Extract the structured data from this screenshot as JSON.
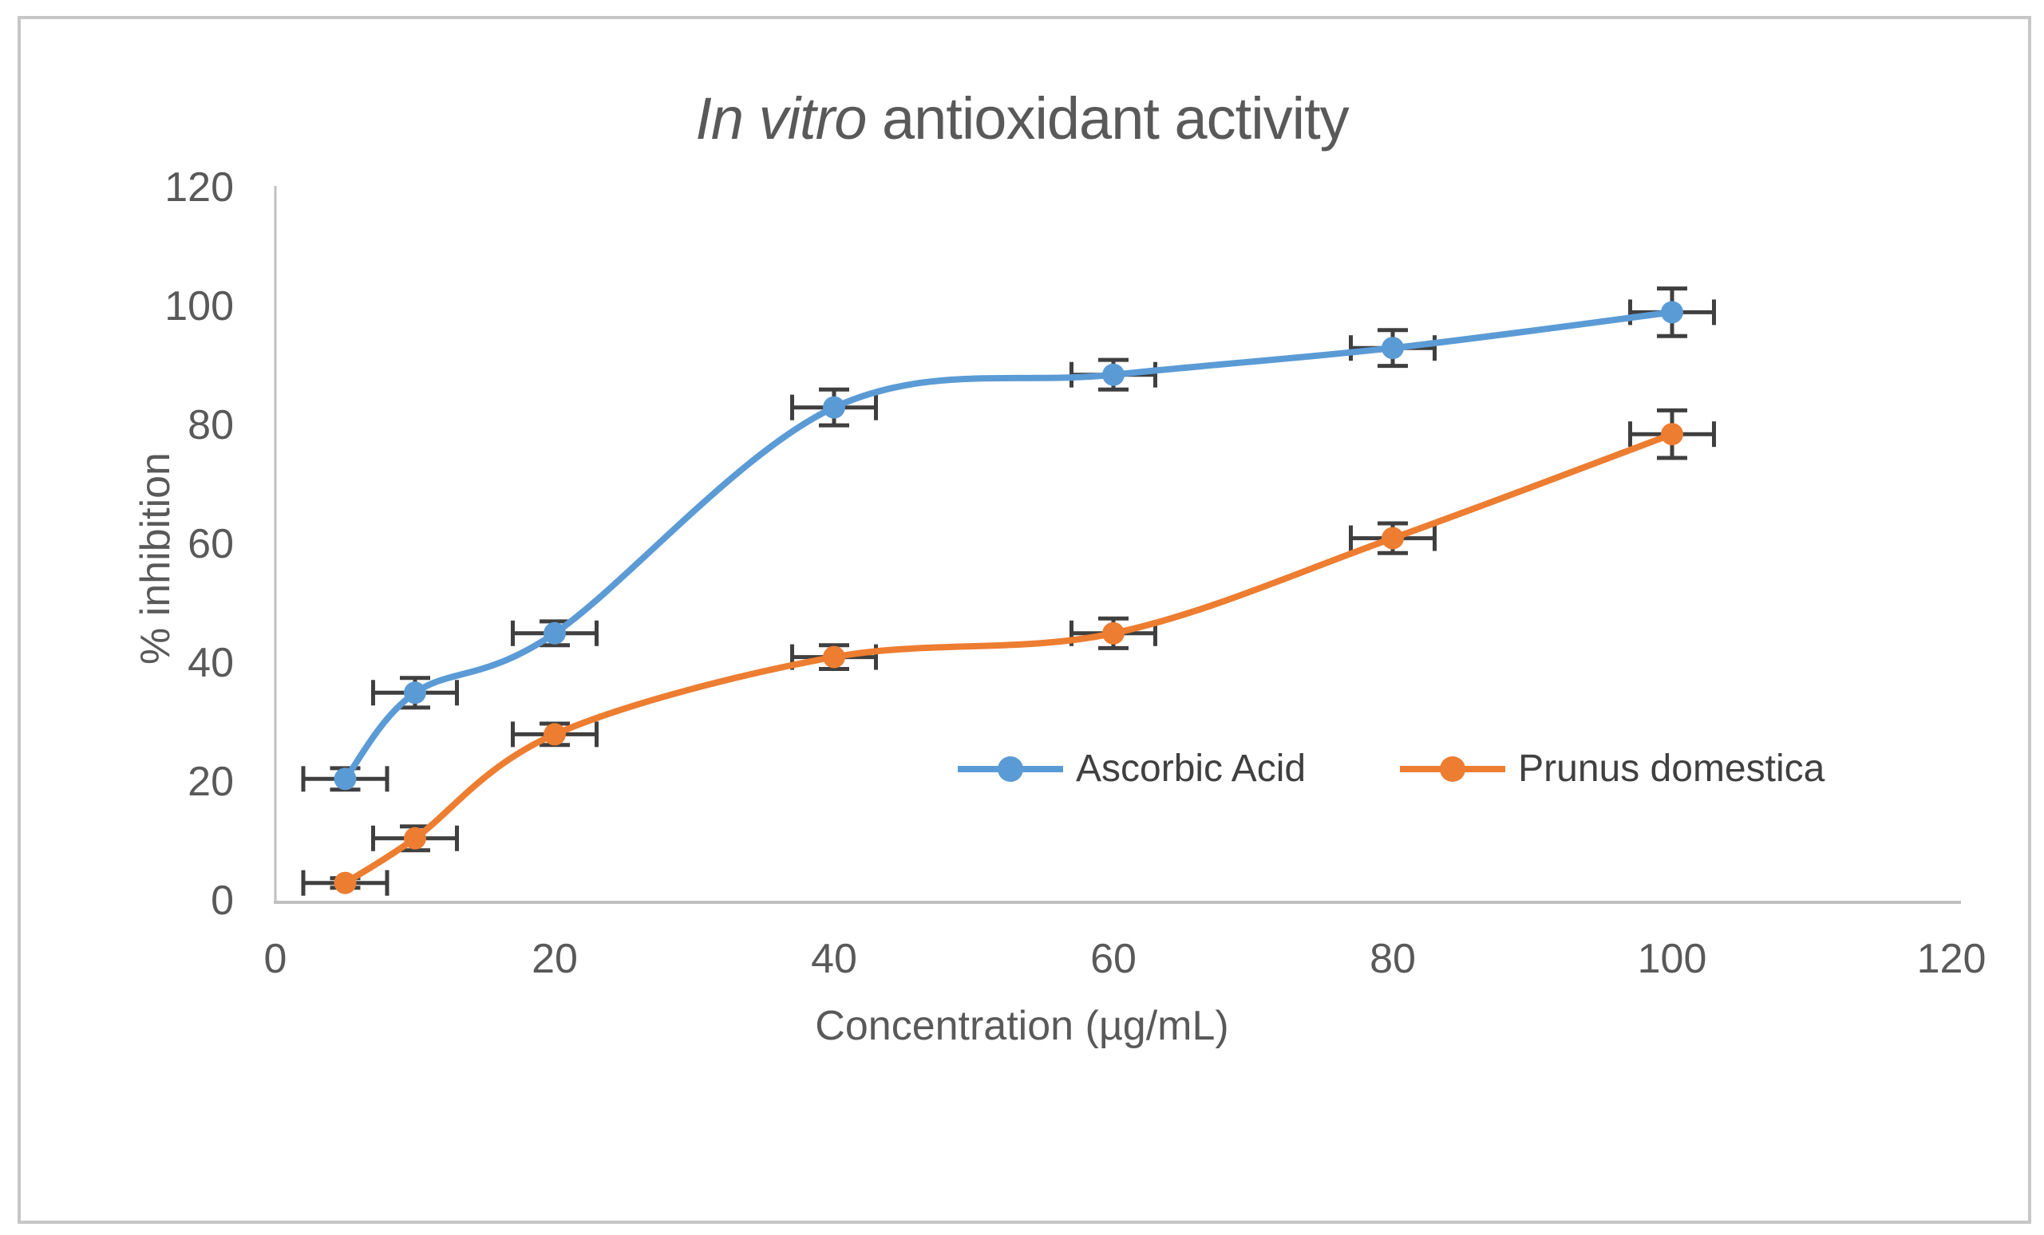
{
  "title": {
    "italic": "In vitro",
    "rest": " antioxidant activity"
  },
  "chart_data": {
    "type": "line",
    "title": "In vitro antioxidant activity",
    "title_italic_part": "In vitro",
    "xlabel": "Concentration (µg/mL)",
    "ylabel": "% inhibition",
    "xlim": [
      0,
      120
    ],
    "ylim": [
      0,
      120
    ],
    "x_ticks": [
      0,
      20,
      40,
      60,
      80,
      100,
      120
    ],
    "y_ticks": [
      0,
      20,
      40,
      60,
      80,
      100,
      120
    ],
    "grid": false,
    "smooth_lines": true,
    "legend_position": "inside-bottom",
    "x": [
      5,
      10,
      20,
      40,
      60,
      80,
      100
    ],
    "series": [
      {
        "name": "Ascorbic Acid",
        "color": "#5B9BD5",
        "values": [
          20.5,
          35,
          45,
          83,
          88.5,
          93,
          99
        ],
        "yerr": [
          1.8,
          2.5,
          2,
          3,
          2.5,
          3,
          4
        ]
      },
      {
        "name": "Prunus domestica",
        "color": "#ED7D31",
        "values": [
          3,
          10.5,
          28,
          41,
          45,
          61,
          78.5
        ],
        "yerr": [
          0.8,
          2,
          1.8,
          2,
          2.5,
          2.5,
          4
        ]
      }
    ],
    "error_bars": {
      "x_error": 3,
      "color": "#3f3f3f"
    },
    "axis_color": "#c0c0c0",
    "tick_label_color": "#595959",
    "axis_title_color": "#595959",
    "title_color": "#595959",
    "legend_text_color": "#404040",
    "background": "#ffffff",
    "border_color": "#c6c6c6"
  }
}
